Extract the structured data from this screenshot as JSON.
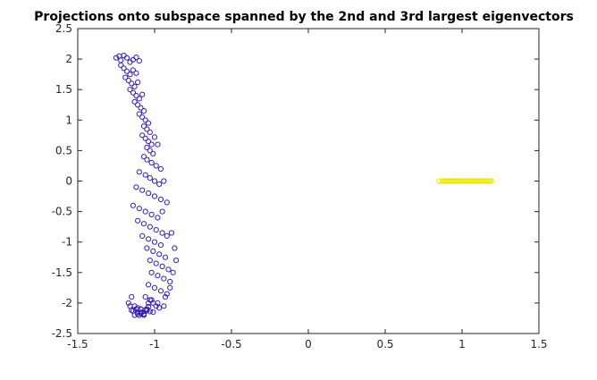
{
  "chart_data": {
    "type": "scatter",
    "title": "Projections onto subspace spanned by the 2nd and 3rd largest eigenvectors",
    "xlabel": "",
    "ylabel": "",
    "xlim": [
      -1.5,
      1.5
    ],
    "ylim": [
      -2.5,
      2.5
    ],
    "xticks": [
      "-1.5",
      "-1",
      "-0.5",
      "0",
      "0.5",
      "1",
      "1.5"
    ],
    "yticks": [
      "2.5",
      "2",
      "1.5",
      "1",
      "0.5",
      "0",
      "-0.5",
      "-1",
      "-1.5",
      "-2",
      "-2.5"
    ],
    "grid": false,
    "legend": "none",
    "marker": "open-circle",
    "series": [
      {
        "color": "#3a1fa8",
        "x": [
          -1.25,
          -1.23,
          -1.22,
          -1.2,
          -1.18,
          -1.16,
          -1.14,
          -1.12,
          -1.1,
          -1.22,
          -1.2,
          -1.18,
          -1.16,
          -1.14,
          -1.12,
          -1.19,
          -1.17,
          -1.15,
          -1.13,
          -1.11,
          -1.16,
          -1.14,
          -1.12,
          -1.1,
          -1.08,
          -1.13,
          -1.11,
          -1.09,
          -1.07,
          -1.1,
          -1.08,
          -1.06,
          -1.04,
          -1.07,
          -1.05,
          -1.03,
          -1.08,
          -1.06,
          -1.04,
          -1.02,
          -1.0,
          -1.05,
          -1.03,
          -1.01,
          -0.98,
          -1.07,
          -1.05,
          -1.02,
          -0.99,
          -0.96,
          -1.1,
          -1.06,
          -1.03,
          -1.0,
          -0.97,
          -0.94,
          -1.12,
          -1.08,
          -1.04,
          -1.0,
          -0.96,
          -0.92,
          -1.14,
          -1.1,
          -1.06,
          -1.02,
          -0.98,
          -0.95,
          -1.11,
          -1.07,
          -1.03,
          -0.99,
          -0.95,
          -1.08,
          -1.04,
          -1.0,
          -0.96,
          -0.92,
          -1.05,
          -1.01,
          -0.97,
          -0.93,
          -0.89,
          -1.03,
          -0.99,
          -0.95,
          -0.91,
          -0.87,
          -1.02,
          -0.98,
          -0.94,
          -0.9,
          -0.86,
          -1.04,
          -1.0,
          -0.96,
          -0.92,
          -0.88,
          -1.06,
          -1.02,
          -0.98,
          -0.94,
          -0.9,
          -1.09,
          -1.05,
          -1.01,
          -0.97,
          -0.93,
          -1.11,
          -1.07,
          -1.03,
          -0.99,
          -1.13,
          -1.09,
          -1.05,
          -1.01,
          -1.15,
          -1.11,
          -1.07,
          -1.03,
          -1.16,
          -1.12,
          -1.08,
          -1.04,
          -1.17,
          -1.13,
          -1.09,
          -1.05,
          -1.15,
          -1.11,
          -1.07,
          -1.1,
          -1.14,
          -1.12,
          -1.09,
          -1.06,
          -1.04
        ],
        "y": [
          2.02,
          2.05,
          1.98,
          2.06,
          2.02,
          1.95,
          1.99,
          2.03,
          1.97,
          1.9,
          1.85,
          1.8,
          1.75,
          1.82,
          1.77,
          1.7,
          1.65,
          1.6,
          1.55,
          1.62,
          1.5,
          1.45,
          1.4,
          1.35,
          1.42,
          1.3,
          1.25,
          1.2,
          1.15,
          1.1,
          1.05,
          1.0,
          0.95,
          0.9,
          0.85,
          0.8,
          0.75,
          0.7,
          0.65,
          0.6,
          0.72,
          0.55,
          0.5,
          0.45,
          0.6,
          0.4,
          0.35,
          0.3,
          0.25,
          0.2,
          0.15,
          0.1,
          0.05,
          0.0,
          -0.05,
          0.0,
          -0.1,
          -0.15,
          -0.2,
          -0.25,
          -0.3,
          -0.35,
          -0.4,
          -0.45,
          -0.5,
          -0.55,
          -0.6,
          -0.5,
          -0.65,
          -0.7,
          -0.75,
          -0.8,
          -0.85,
          -0.9,
          -0.95,
          -1.0,
          -1.05,
          -0.9,
          -1.1,
          -1.15,
          -1.2,
          -1.25,
          -0.85,
          -1.3,
          -1.35,
          -1.4,
          -1.45,
          -1.1,
          -1.5,
          -1.55,
          -1.6,
          -1.65,
          -1.3,
          -1.7,
          -1.75,
          -1.8,
          -1.85,
          -1.5,
          -1.9,
          -1.95,
          -2.0,
          -2.05,
          -1.75,
          -2.1,
          -2.12,
          -2.15,
          -2.08,
          -1.9,
          -2.18,
          -2.2,
          -2.14,
          -2.05,
          -2.2,
          -2.16,
          -2.1,
          -2.0,
          -2.12,
          -2.08,
          -2.18,
          -1.95,
          -2.05,
          -2.1,
          -2.15,
          -2.0,
          -2.0,
          -2.05,
          -2.1,
          -2.12,
          -1.9,
          -2.15,
          -2.18,
          -2.2,
          -2.13,
          -2.1,
          -2.17,
          -2.11,
          -2.06
        ]
      },
      {
        "color": "#e8e800",
        "x": [
          0.85,
          0.87,
          0.89,
          0.91,
          0.93,
          0.95,
          0.97,
          0.99,
          1.01,
          1.03,
          1.05,
          1.07,
          1.09,
          1.11,
          1.13,
          1.15,
          1.17,
          1.19,
          0.88,
          0.9,
          0.92,
          0.94,
          0.96,
          0.98,
          1.0,
          1.02,
          1.04,
          1.06,
          1.08,
          1.1,
          1.12,
          1.14,
          1.16,
          1.18
        ],
        "y": [
          0,
          0,
          0,
          0,
          0,
          0,
          0,
          0,
          0,
          0,
          0,
          0,
          0,
          0,
          0,
          0,
          0,
          0,
          0,
          0,
          0,
          0,
          0,
          0,
          0,
          0,
          0,
          0,
          0,
          0,
          0,
          0,
          0,
          0
        ]
      }
    ]
  }
}
